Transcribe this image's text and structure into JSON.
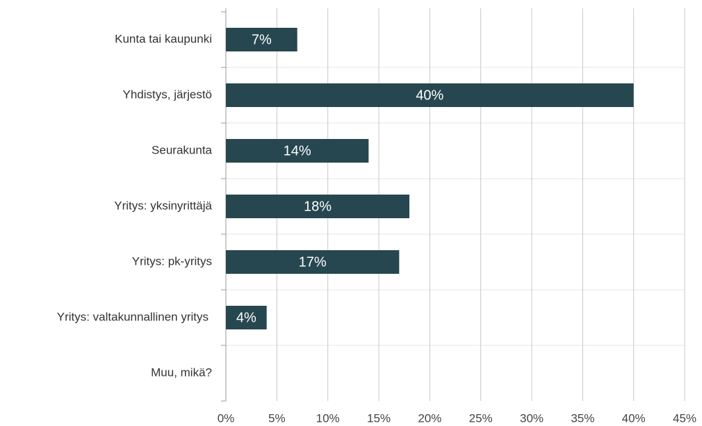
{
  "chart_data": {
    "type": "hbar",
    "categories": [
      "Kunta tai kaupunki",
      "Yhdistys, järjestö",
      "Seurakunta",
      "Yritys: yksinyrittäjä",
      "Yritys: pk-yritys",
      "Yritys: valtakunnallinen yritys",
      "Muu, mikä?"
    ],
    "values": [
      7,
      40,
      14,
      18,
      17,
      4,
      null
    ],
    "value_labels": [
      "7%",
      "40%",
      "14%",
      "18%",
      "17%",
      "4%",
      null
    ],
    "color": "#26474f",
    "xlim": [
      0,
      45
    ],
    "xticks": [
      {
        "value": 0,
        "label": "0%"
      },
      {
        "value": 5,
        "label": "5%"
      },
      {
        "value": 10,
        "label": "10%"
      },
      {
        "value": 15,
        "label": "15%"
      },
      {
        "value": 20,
        "label": "20%"
      },
      {
        "value": 25,
        "label": "25%"
      },
      {
        "value": 30,
        "label": "30%"
      },
      {
        "value": 35,
        "label": "35%"
      },
      {
        "value": 40,
        "label": "40%"
      },
      {
        "value": 45,
        "label": "45%"
      }
    ],
    "grid": true
  }
}
